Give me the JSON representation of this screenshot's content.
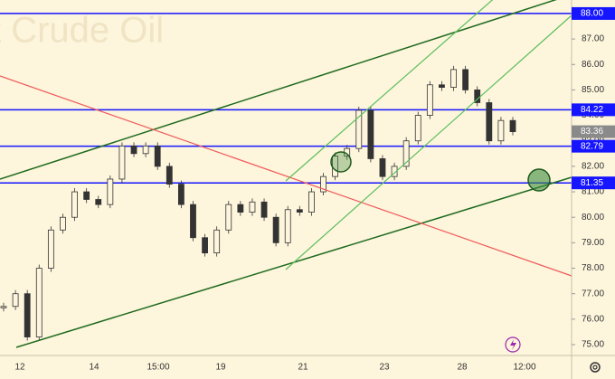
{
  "chart_data": {
    "type": "candlestick",
    "watermark": "t Crude Oil",
    "x_labels": [
      "12",
      "14",
      "15:00",
      "19",
      "21",
      "23",
      "28",
      "12:00"
    ],
    "values": [
      76.5,
      77.0,
      75.3,
      78.0,
      79.5,
      80.0,
      81.0,
      80.7,
      80.5,
      81.5,
      82.8,
      82.5,
      82.8,
      82.0,
      81.3,
      80.5,
      79.2,
      78.6,
      79.5,
      80.5,
      80.2,
      80.6,
      80.0,
      79.0,
      80.3,
      80.2,
      81.0,
      81.6,
      82.4,
      82.7,
      84.2,
      82.3,
      81.6,
      82.0,
      83.0,
      84.0,
      85.2,
      85.1,
      85.8,
      85.0,
      84.5,
      83.0,
      83.8,
      83.36
    ],
    "color": "#333333",
    "levels": [
      {
        "value": 88.0,
        "label": "88.00"
      },
      {
        "value": 84.22,
        "label": "84.22"
      },
      {
        "value": 82.79,
        "label": "82.79"
      },
      {
        "value": 81.35,
        "label": "81.35"
      }
    ],
    "level_color": "#1515ff",
    "last_price": {
      "value": 83.36,
      "label": "83.36"
    },
    "ylim": [
      74.61,
      88.53
    ],
    "yticks": [
      {
        "value": 75,
        "label": "75.00"
      },
      {
        "value": 76,
        "label": "76.00"
      },
      {
        "value": 77,
        "label": "77.00"
      },
      {
        "value": 78,
        "label": "78.00"
      },
      {
        "value": 79,
        "label": "79.00"
      },
      {
        "value": 80,
        "label": "80.00"
      },
      {
        "value": 81,
        "label": "81.00"
      },
      {
        "value": 82,
        "label": "82.00"
      },
      {
        "value": 83,
        "label": "83.00"
      },
      {
        "value": 84,
        "label": "84.00"
      },
      {
        "value": 85,
        "label": "85.00"
      },
      {
        "value": 86,
        "label": "86.00"
      },
      {
        "value": 87,
        "label": "87.00"
      }
    ]
  }
}
